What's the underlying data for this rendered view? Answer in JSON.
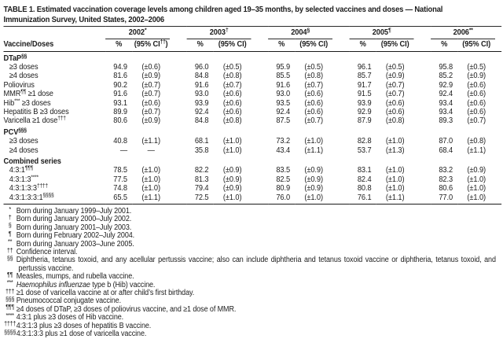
{
  "title": {
    "line1": "TABLE 1. Estimated vaccination coverage levels among children aged 19–35 months, by selected vaccines and doses — National",
    "line2": "Immunization Survey, United States, 2002–2006"
  },
  "table": {
    "row_header": "Vaccine/Doses",
    "pct_label": "%",
    "years": [
      {
        "label": "2002",
        "sup": "*",
        "ci_pre": "(95% CI",
        "ci_sup": "††",
        "ci_close": ")"
      },
      {
        "label": "2003",
        "sup": "†",
        "ci_pre": "(95% CI",
        "ci_sup": "",
        "ci_close": ")"
      },
      {
        "label": "2004",
        "sup": "§",
        "ci_pre": "(95% CI",
        "ci_sup": "",
        "ci_close": ")"
      },
      {
        "label": "2005",
        "sup": "¶",
        "ci_pre": "(95% CI",
        "ci_sup": "",
        "ci_close": ")"
      },
      {
        "label": "2006",
        "sup": "**",
        "ci_pre": "(95% CI",
        "ci_sup": "",
        "ci_close": ")"
      }
    ],
    "rows": [
      {
        "type": "section",
        "pre": "DTaP",
        "sup": "§§",
        "post": ""
      },
      {
        "type": "data",
        "indent": true,
        "pre": "≥3 doses",
        "sup": "",
        "post": "",
        "cells": [
          [
            "94.9",
            "(±0.6)"
          ],
          [
            "96.0",
            "(±0.5)"
          ],
          [
            "95.9",
            "(±0.5)"
          ],
          [
            "96.1",
            "(±0.5)"
          ],
          [
            "95.8",
            "(±0.5)"
          ]
        ]
      },
      {
        "type": "data",
        "indent": true,
        "pre": "≥4 doses",
        "sup": "",
        "post": "",
        "cells": [
          [
            "81.6",
            "(±0.9)"
          ],
          [
            "84.8",
            "(±0.8)"
          ],
          [
            "85.5",
            "(±0.8)"
          ],
          [
            "85.7",
            "(±0.9)"
          ],
          [
            "85.2",
            "(±0.9)"
          ]
        ]
      },
      {
        "type": "data",
        "indent": false,
        "pre": "Poliovirus",
        "sup": "",
        "post": "",
        "cells": [
          [
            "90.2",
            "(±0.7)"
          ],
          [
            "91.6",
            "(±0.7)"
          ],
          [
            "91.6",
            "(±0.7)"
          ],
          [
            "91.7",
            "(±0.7)"
          ],
          [
            "92.9",
            "(±0.6)"
          ]
        ]
      },
      {
        "type": "data",
        "indent": false,
        "pre": "MMR",
        "sup": "¶¶",
        "post": " ≥1 dose",
        "cells": [
          [
            "91.6",
            "(±0.7)"
          ],
          [
            "93.0",
            "(±0.6)"
          ],
          [
            "93.0",
            "(±0.6)"
          ],
          [
            "91.5",
            "(±0.7)"
          ],
          [
            "92.4",
            "(±0.6)"
          ]
        ]
      },
      {
        "type": "data",
        "indent": false,
        "pre": "Hib",
        "sup": "***",
        "post": " ≥3 doses",
        "cells": [
          [
            "93.1",
            "(±0.6)"
          ],
          [
            "93.9",
            "(±0.6)"
          ],
          [
            "93.5",
            "(±0.6)"
          ],
          [
            "93.9",
            "(±0.6)"
          ],
          [
            "93.4",
            "(±0.6)"
          ]
        ]
      },
      {
        "type": "data",
        "indent": false,
        "pre": "Hepatitis B ≥3 doses",
        "sup": "",
        "post": "",
        "cells": [
          [
            "89.9",
            "(±0.7)"
          ],
          [
            "92.4",
            "(±0.6)"
          ],
          [
            "92.4",
            "(±0.6)"
          ],
          [
            "92.9",
            "(±0.6)"
          ],
          [
            "93.4",
            "(±0.6)"
          ]
        ]
      },
      {
        "type": "data",
        "indent": false,
        "pre": "Varicella ≥1 dose",
        "sup": "†††",
        "post": "",
        "cells": [
          [
            "80.6",
            "(±0.9)"
          ],
          [
            "84.8",
            "(±0.8)"
          ],
          [
            "87.5",
            "(±0.7)"
          ],
          [
            "87.9",
            "(±0.8)"
          ],
          [
            "89.3",
            "(±0.7)"
          ]
        ]
      },
      {
        "type": "section",
        "pre": "PCV",
        "sup": "§§§",
        "post": ""
      },
      {
        "type": "data",
        "indent": true,
        "pre": "≥3 doses",
        "sup": "",
        "post": "",
        "cells": [
          [
            "40.8",
            "(±1.1)"
          ],
          [
            "68.1",
            "(±1.0)"
          ],
          [
            "73.2",
            "(±1.0)"
          ],
          [
            "82.8",
            "(±1.0)"
          ],
          [
            "87.0",
            "(±0.8)"
          ]
        ]
      },
      {
        "type": "data",
        "indent": true,
        "pre": "≥4 doses",
        "sup": "",
        "post": "",
        "cells": [
          [
            "—",
            "—"
          ],
          [
            "35.8",
            "(±1.0)"
          ],
          [
            "43.4",
            "(±1.1)"
          ],
          [
            "53.7",
            "(±1.3)"
          ],
          [
            "68.4",
            "(±1.1)"
          ]
        ]
      },
      {
        "type": "section",
        "pre": "Combined series",
        "sup": "",
        "post": ""
      },
      {
        "type": "data",
        "indent": true,
        "pre": "4:3:1",
        "sup": "¶¶¶",
        "post": "",
        "cells": [
          [
            "78.5",
            "(±1.0)"
          ],
          [
            "82.2",
            "(±0.9)"
          ],
          [
            "83.5",
            "(±0.9)"
          ],
          [
            "83.1",
            "(±1.0)"
          ],
          [
            "83.2",
            "(±0.9)"
          ]
        ]
      },
      {
        "type": "data",
        "indent": true,
        "pre": "4:3:1:3",
        "sup": "****",
        "post": "",
        "cells": [
          [
            "77.5",
            "(±1.0)"
          ],
          [
            "81.3",
            "(±0.9)"
          ],
          [
            "82.5",
            "(±0.9)"
          ],
          [
            "82.4",
            "(±1.0)"
          ],
          [
            "82.3",
            "(±1.0)"
          ]
        ]
      },
      {
        "type": "data",
        "indent": true,
        "pre": "4:3:1:3:3",
        "sup": "††††",
        "post": "",
        "cells": [
          [
            "74.8",
            "(±1.0)"
          ],
          [
            "79.4",
            "(±0.9)"
          ],
          [
            "80.9",
            "(±0.9)"
          ],
          [
            "80.8",
            "(±1.0)"
          ],
          [
            "80.6",
            "(±1.0)"
          ]
        ]
      },
      {
        "type": "data",
        "indent": true,
        "pre": "4:3:1:3:3:1",
        "sup": "§§§§",
        "post": "",
        "cells": [
          [
            "65.5",
            "(±1.1)"
          ],
          [
            "72.5",
            "(±1.0)"
          ],
          [
            "76.0",
            "(±1.0)"
          ],
          [
            "76.1",
            "(±1.1)"
          ],
          [
            "77.0",
            "(±1.0)"
          ]
        ]
      }
    ]
  },
  "footnotes": [
    {
      "marker": "*",
      "text": "Born during January 1999–July 2001."
    },
    {
      "marker": "†",
      "text": "Born during January 2000–July 2002."
    },
    {
      "marker": "§",
      "text": "Born during January 2001–July 2003."
    },
    {
      "marker": "¶",
      "text": "Born during February 2002–July 2004."
    },
    {
      "marker": "**",
      "text": "Born during January 2003–June 2005."
    },
    {
      "marker": "††",
      "text": "Confidence interval."
    },
    {
      "marker": "§§",
      "text": "Diphtheria, tetanus toxoid, and any acellular pertussis vaccine; also can include diphtheria and tetanus toxoid vaccine or diphtheria, tetanus toxoid, and pertussis vaccine."
    },
    {
      "marker": "¶¶",
      "text": "Measles, mumps, and rubella vaccine."
    },
    {
      "marker": "***",
      "italic": "Haemophilus influenzae",
      "text": " type b (Hib) vaccine."
    },
    {
      "marker": "†††",
      "text": "≥1 dose of varicella vaccine at or after child’s first birthday."
    },
    {
      "marker": "§§§",
      "text": "Pneumococcal conjugate vaccine."
    },
    {
      "marker": "¶¶¶",
      "text": "≥4 doses of DTaP, ≥3 doses of poliovirus vaccine, and ≥1 dose of MMR."
    },
    {
      "marker": "****",
      "text": "4:3:1 plus ≥3 doses of Hib vaccine."
    },
    {
      "marker": "††††",
      "text": "4:3:1:3 plus ≥3 doses of hepatitis B vaccine."
    },
    {
      "marker": "§§§§",
      "text": "4:3:1:3:3 plus ≥1 dose of varicella vaccine."
    }
  ]
}
